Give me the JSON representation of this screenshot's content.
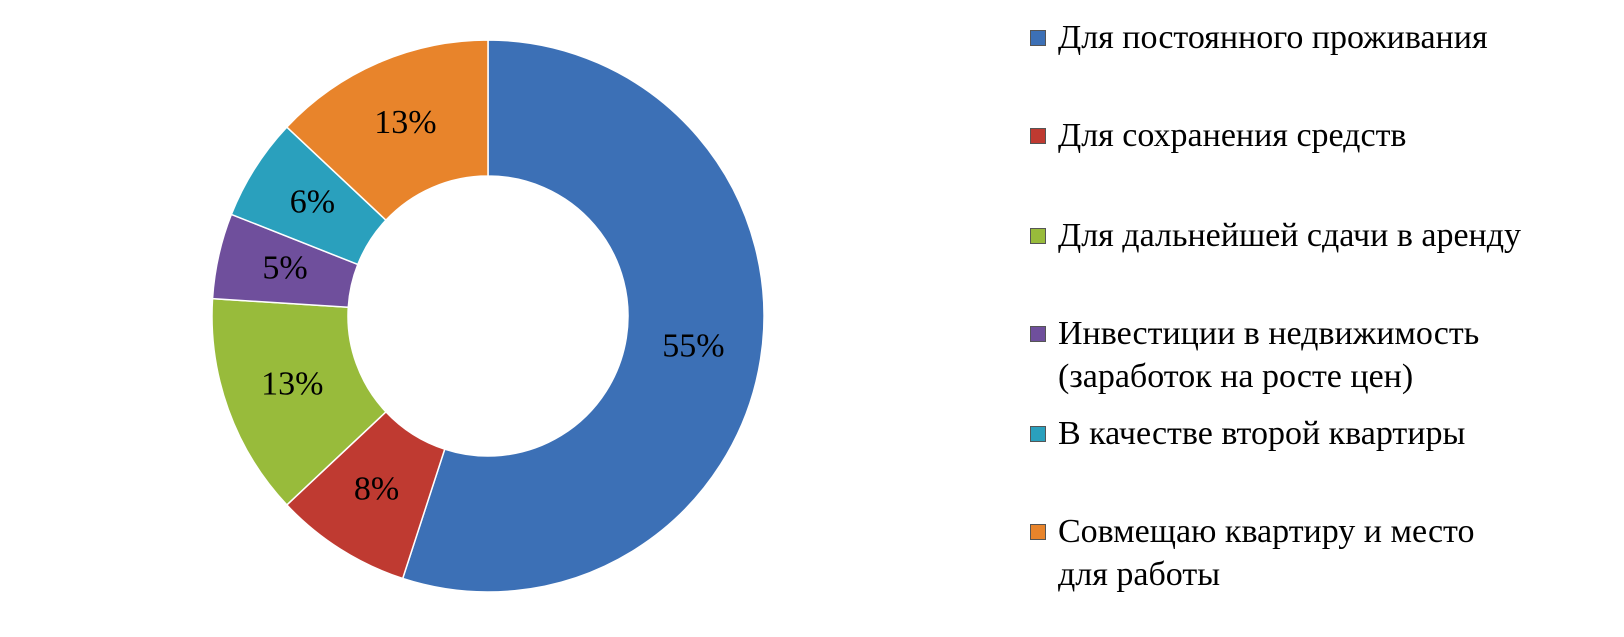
{
  "chart_data": {
    "type": "donut",
    "categories": [
      "Для постоянного проживания",
      "Для сохранения средств",
      "Для дальнейшей сдачи в аренду",
      "Инвестиции в недвижимость (заработок на росте цен)",
      "В качестве второй квартиры",
      "Совмещаю квартиру и место для работы"
    ],
    "values": [
      55,
      8,
      13,
      5,
      6,
      13
    ],
    "value_labels": [
      "55%",
      "8%",
      "13%",
      "5%",
      "6%",
      "13%"
    ],
    "colors": [
      "#3c70b6",
      "#bf3a31",
      "#98bb3b",
      "#6f4f9c",
      "#2aa0bd",
      "#e8842b"
    ],
    "legend": "right"
  }
}
